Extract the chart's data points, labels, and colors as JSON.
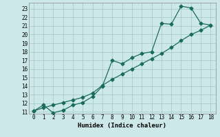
{
  "xlabel": "Humidex (Indice chaleur)",
  "background_color": "#cce8e8",
  "grid_color": "#aacccc",
  "line_color": "#1a6b5a",
  "xlim": [
    -0.5,
    18.5
  ],
  "ylim": [
    10.8,
    23.7
  ],
  "xticks": [
    0,
    1,
    2,
    3,
    4,
    5,
    6,
    7,
    8,
    9,
    10,
    11,
    12,
    13,
    14,
    15,
    16,
    17,
    18
  ],
  "yticks": [
    11,
    12,
    13,
    14,
    15,
    16,
    17,
    18,
    19,
    20,
    21,
    22,
    23
  ],
  "line1_x": [
    0,
    1,
    2,
    3,
    4,
    5,
    6,
    7,
    8,
    9,
    10,
    11,
    12,
    13,
    14,
    15,
    16,
    17,
    18
  ],
  "line1_y": [
    11.1,
    11.8,
    10.9,
    11.2,
    11.8,
    12.1,
    12.8,
    14.0,
    17.0,
    16.6,
    17.3,
    17.8,
    18.0,
    21.3,
    21.2,
    23.3,
    23.1,
    21.3,
    21.1
  ],
  "line2_x": [
    0,
    1,
    2,
    3,
    4,
    5,
    6,
    7,
    8,
    9,
    10,
    11,
    12,
    13,
    14,
    15,
    16,
    17,
    18
  ],
  "line2_y": [
    11.1,
    11.5,
    11.8,
    12.1,
    12.4,
    12.7,
    13.2,
    14.1,
    14.8,
    15.4,
    16.0,
    16.6,
    17.2,
    17.8,
    18.5,
    19.3,
    20.0,
    20.5,
    21.1
  ],
  "font_family": "monospace",
  "tick_fontsize": 5.5,
  "xlabel_fontsize": 6.5,
  "marker": "D",
  "markersize": 2.5,
  "linewidth": 0.9
}
